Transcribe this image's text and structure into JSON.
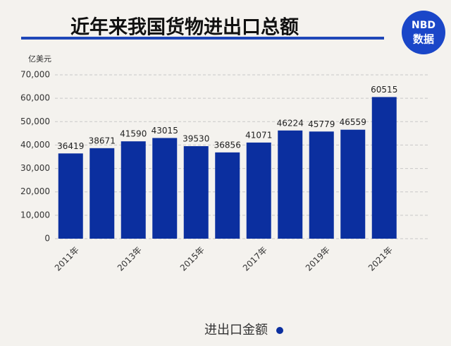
{
  "chart_data": {
    "type": "bar",
    "title": "近年来我国货物进出口总额",
    "logo": [
      "NBD",
      "数据"
    ],
    "y_unit": "亿美元",
    "legend_label": "进出口金额",
    "categories": [
      "2011年",
      null,
      "2013年",
      null,
      "2015年",
      null,
      "2017年",
      null,
      "2019年",
      null,
      "2021年"
    ],
    "values": [
      36419,
      38671,
      41590,
      43015,
      39530,
      36856,
      41071,
      46224,
      45779,
      46559,
      60515
    ],
    "color": "#0b2f9f",
    "ylim": [
      0,
      70000
    ],
    "yticks": [
      0,
      {
        "value": 10000,
        "label": "10,000"
      },
      {
        "value": 20000,
        "label": "20,000"
      },
      {
        "value": 30000,
        "label": "30,000"
      },
      {
        "value": 40000,
        "label": "40,000"
      },
      {
        "value": 50000,
        "label": "50,000"
      },
      {
        "value": 60000,
        "label": "60,000"
      },
      {
        "value": 70000,
        "label": "70,000"
      }
    ],
    "grid": true
  }
}
